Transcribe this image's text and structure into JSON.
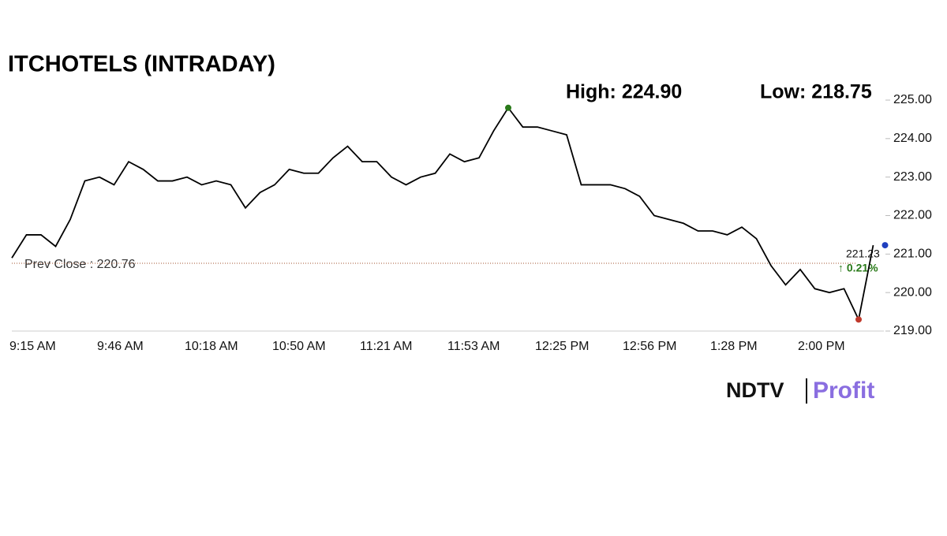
{
  "chart_data": {
    "type": "line",
    "title": "ITCHOTELS (INTRADAY)",
    "high_label": "High: 224.90",
    "low_label": "Low: 218.75",
    "prev_close": 220.76,
    "prev_close_label": "Prev Close : 220.76",
    "last_label": "221.23",
    "change_label": "↑ 0.21%",
    "brand": [
      "NDTV",
      "Profit"
    ],
    "categories": [
      "9:15 AM",
      null,
      null,
      null,
      null,
      null,
      "9:46 AM",
      null,
      null,
      null,
      null,
      null,
      "10:18 AM",
      null,
      null,
      null,
      null,
      null,
      "10:50 AM",
      null,
      null,
      null,
      null,
      null,
      "11:21 AM",
      null,
      null,
      null,
      null,
      null,
      "11:53 AM",
      null,
      null,
      null,
      null,
      null,
      "12:25 PM",
      null,
      null,
      null,
      null,
      null,
      "12:56 PM",
      null,
      null,
      null,
      null,
      null,
      "1:28 PM",
      null,
      null,
      null,
      null,
      null,
      "2:00 PM",
      null,
      null,
      null,
      null,
      null
    ],
    "series": [
      {
        "color": "#000000",
        "values": [
          220.9,
          221.5,
          221.5,
          221.2,
          221.9,
          222.9,
          223.0,
          222.8,
          223.4,
          223.2,
          222.9,
          222.9,
          223.0,
          222.8,
          222.9,
          222.8,
          222.2,
          222.6,
          222.8,
          223.2,
          223.1,
          223.1,
          223.5,
          223.8,
          223.4,
          223.4,
          223.0,
          222.8,
          223.0,
          223.1,
          223.6,
          223.4,
          223.5,
          224.2,
          224.8,
          224.3,
          224.3,
          224.2,
          224.1,
          222.8,
          222.8,
          222.8,
          222.7,
          222.5,
          222.0,
          221.9,
          221.8,
          221.6,
          221.6,
          221.5,
          221.7,
          221.4,
          220.7,
          220.2,
          220.6,
          220.1,
          220.0,
          220.1,
          219.3,
          221.23
        ]
      }
    ],
    "ylim": [
      219,
      225
    ],
    "yticks": [
      {
        "value": 225,
        "label": "225.00"
      },
      {
        "value": 224,
        "label": "224.00"
      },
      {
        "value": 223,
        "label": "223.00"
      },
      {
        "value": 222,
        "label": "222.00"
      },
      {
        "value": 221,
        "label": "221.00"
      },
      {
        "value": 220,
        "label": "220.00"
      },
      {
        "value": 219,
        "label": "219.00"
      }
    ]
  }
}
